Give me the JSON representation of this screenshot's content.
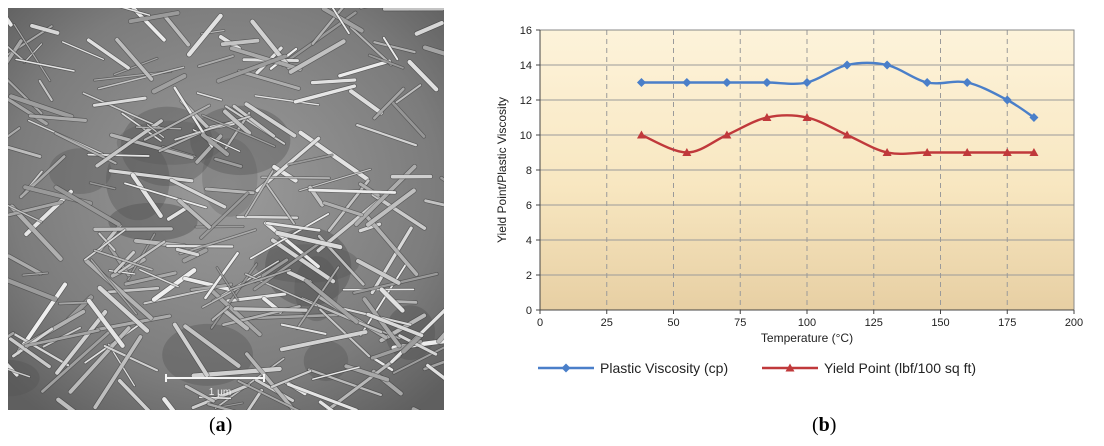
{
  "figure": {
    "caption_a": "a",
    "caption_b": "b",
    "sem_scale_label": "1 μm"
  },
  "chart_data": {
    "type": "line",
    "title": "",
    "xlabel": "Temperature (°C)",
    "ylabel": "Yield Point/Plastic Viscosity",
    "xlim": [
      0,
      200
    ],
    "ylim": [
      0,
      16
    ],
    "xticks": [
      0,
      25,
      50,
      75,
      100,
      125,
      150,
      175,
      200
    ],
    "yticks": [
      0,
      2,
      4,
      6,
      8,
      10,
      12,
      14,
      16
    ],
    "grid": true,
    "legend_position": "bottom",
    "series": [
      {
        "name": "Plastic Viscosity (cp)",
        "color": "#4a7fc9",
        "marker": "diamond",
        "x": [
          38,
          55,
          70,
          85,
          100,
          115,
          130,
          145,
          160,
          175,
          185
        ],
        "y": [
          13,
          13,
          13,
          13,
          13,
          14,
          14,
          13,
          13,
          12,
          11
        ]
      },
      {
        "name": "Yield Point (lbf/100 sq ft)",
        "color": "#c0393b",
        "marker": "triangle",
        "x": [
          38,
          55,
          70,
          85,
          100,
          115,
          130,
          145,
          160,
          175,
          185
        ],
        "y": [
          10,
          9,
          10,
          11,
          11,
          10,
          9,
          9,
          9,
          9,
          9
        ]
      }
    ]
  }
}
